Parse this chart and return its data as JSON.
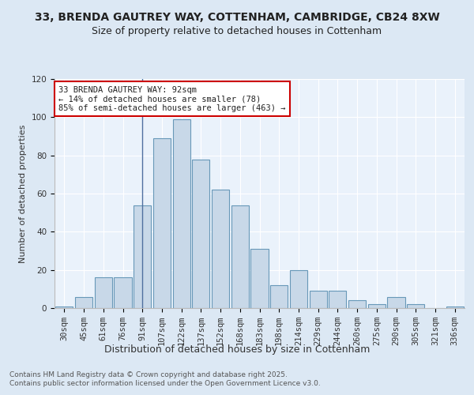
{
  "title1": "33, BRENDA GAUTREY WAY, COTTENHAM, CAMBRIDGE, CB24 8XW",
  "title2": "Size of property relative to detached houses in Cottenham",
  "xlabel": "Distribution of detached houses by size in Cottenham",
  "ylabel": "Number of detached properties",
  "bar_labels": [
    "30sqm",
    "45sqm",
    "61sqm",
    "76sqm",
    "91sqm",
    "107sqm",
    "122sqm",
    "137sqm",
    "152sqm",
    "168sqm",
    "183sqm",
    "198sqm",
    "214sqm",
    "229sqm",
    "244sqm",
    "260sqm",
    "275sqm",
    "290sqm",
    "305sqm",
    "321sqm",
    "336sqm"
  ],
  "bar_values": [
    1,
    6,
    16,
    16,
    54,
    89,
    99,
    78,
    62,
    54,
    31,
    12,
    20,
    9,
    9,
    4,
    2,
    6,
    2,
    0,
    1
  ],
  "bar_color": "#c8d8e8",
  "bar_edge_color": "#6898b8",
  "background_color": "#dce8f4",
  "plot_bg_color": "#eaf2fb",
  "grid_color": "#ffffff",
  "vline_x": 4,
  "vline_color": "#5070a0",
  "annotation_text": "33 BRENDA GAUTREY WAY: 92sqm\n← 14% of detached houses are smaller (78)\n85% of semi-detached houses are larger (463) →",
  "annotation_box_color": "#ffffff",
  "annotation_box_edge": "#cc0000",
  "ylim": [
    0,
    120
  ],
  "yticks": [
    0,
    20,
    40,
    60,
    80,
    100,
    120
  ],
  "footer_text": "Contains HM Land Registry data © Crown copyright and database right 2025.\nContains public sector information licensed under the Open Government Licence v3.0.",
  "title1_fontsize": 10,
  "title2_fontsize": 9,
  "xlabel_fontsize": 9,
  "ylabel_fontsize": 8,
  "tick_fontsize": 7.5,
  "annotation_fontsize": 7.5,
  "footer_fontsize": 6.5
}
